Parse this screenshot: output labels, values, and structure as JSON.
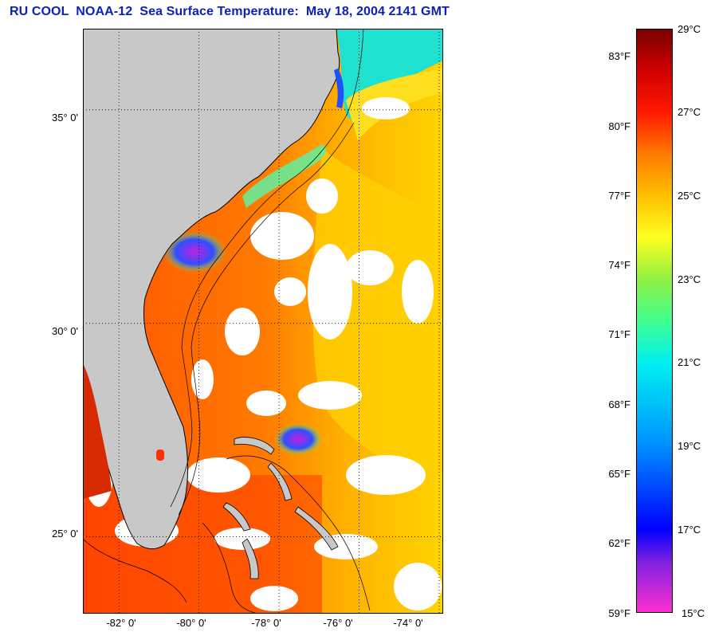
{
  "title": "RU COOL  NOAA-12  Sea Surface Temperature:  May 18, 2004 2141 GMT",
  "map": {
    "lat_range": [
      23.2,
      36.9
    ],
    "lon_range": [
      -82.9,
      -73.9
    ],
    "lat_ticks": [
      {
        "lat": 35,
        "label": "35° 0'"
      },
      {
        "lat": 30,
        "label": "30° 0'"
      },
      {
        "lat": 25,
        "label": "25° 0'"
      }
    ],
    "lon_ticks": [
      {
        "lon": -82,
        "label": "-82° 0'"
      },
      {
        "lon": -80,
        "label": "-80° 0'"
      },
      {
        "lon": -78,
        "label": "-78° 0'"
      },
      {
        "lon": -76,
        "label": "-76° 0'"
      },
      {
        "lon": -74,
        "label": "-74° 0'"
      }
    ],
    "grid": "dotted",
    "colors": {
      "land": "#c8c8c8",
      "cloud": "#ffffff",
      "contour": "#000000"
    }
  },
  "colorbar": {
    "range_c": [
      15,
      29
    ],
    "celsius_labels": [
      "29°C",
      "27°C",
      "25°C",
      "23°C",
      "21°C",
      "19°C",
      "17°C",
      "15°C"
    ],
    "fahrenheit_labels": [
      "83°F",
      "80°F",
      "77°F",
      "74°F",
      "71°F",
      "68°F",
      "65°F",
      "62°F",
      "59°F"
    ],
    "stops": [
      {
        "c": 15,
        "color": "#ff30d0"
      },
      {
        "c": 16.2,
        "color": "#8020e0"
      },
      {
        "c": 17,
        "color": "#0000ff"
      },
      {
        "c": 19,
        "color": "#0090ff"
      },
      {
        "c": 21,
        "color": "#00f0f0"
      },
      {
        "c": 22,
        "color": "#40ff90"
      },
      {
        "c": 23,
        "color": "#90f040"
      },
      {
        "c": 24,
        "color": "#ffff20"
      },
      {
        "c": 25,
        "color": "#ffc000"
      },
      {
        "c": 26,
        "color": "#ff7a00"
      },
      {
        "c": 27,
        "color": "#ff1a00"
      },
      {
        "c": 28,
        "color": "#d00000"
      },
      {
        "c": 29,
        "color": "#7a0000"
      }
    ]
  }
}
